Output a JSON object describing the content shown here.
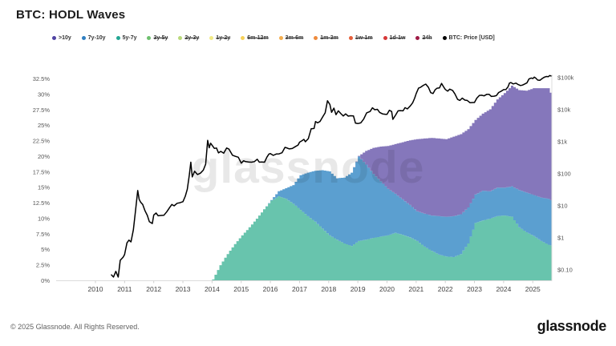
{
  "header": {
    "title": "BTC: HODL Waves"
  },
  "watermark": "glassnode",
  "footer": {
    "copyright": "© 2025 Glassnode. All Rights Reserved.",
    "brand": "glassnode"
  },
  "legend": {
    "items": [
      {
        "label": ">10y",
        "color": "#4f43a3",
        "enabled": true
      },
      {
        "label": "7y-10y",
        "color": "#2f7fc1",
        "enabled": true
      },
      {
        "label": "5y-7y",
        "color": "#23a693",
        "enabled": true
      },
      {
        "label": "3y-5y",
        "color": "#6ec06e",
        "enabled": false
      },
      {
        "label": "2y-3y",
        "color": "#b9d97a",
        "enabled": false
      },
      {
        "label": "1y-2y",
        "color": "#f1ea86",
        "enabled": false
      },
      {
        "label": "6m-12m",
        "color": "#f7d158",
        "enabled": false
      },
      {
        "label": "3m-6m",
        "color": "#f4ae4e",
        "enabled": false
      },
      {
        "label": "1m-3m",
        "color": "#ee8a3c",
        "enabled": false
      },
      {
        "label": "1w-1m",
        "color": "#e55f3a",
        "enabled": false
      },
      {
        "label": "1d-1w",
        "color": "#d63737",
        "enabled": false
      },
      {
        "label": "24h",
        "color": "#9e1a45",
        "enabled": false
      },
      {
        "label": "BTC: Price [USD]",
        "color": "#000000",
        "enabled": true
      }
    ]
  },
  "chart_data": {
    "type": "area",
    "stacked": true,
    "title": "BTC: HODL Waves",
    "x_unit": "year",
    "x_ticks": [
      2010,
      2011,
      2012,
      2013,
      2014,
      2015,
      2016,
      2017,
      2018,
      2019,
      2020,
      2021,
      2022,
      2023,
      2024,
      2025
    ],
    "y_left": {
      "unit": "%",
      "range": [
        0,
        32.5
      ],
      "tick_values": [
        0,
        2.5,
        5,
        7.5,
        10,
        12.5,
        15,
        17.5,
        20,
        22.5,
        25,
        27.5,
        30,
        32.5
      ],
      "tick_labels": [
        "0%",
        "2.5%",
        "5%",
        "7.5%",
        "10%",
        "12.5%",
        "15%",
        "17.5%",
        "20%",
        "22.5%",
        "25%",
        "27.5%",
        "30%",
        "32.5%"
      ]
    },
    "y_right": {
      "scale": "log",
      "unit": "USD",
      "tick_values": [
        0.1,
        1,
        10,
        100,
        1000,
        10000,
        100000
      ],
      "tick_labels": [
        "$0.10",
        "$1",
        "$10",
        "$100",
        "$1k",
        "$10k",
        "$100k"
      ]
    },
    "x": [
      2014.0,
      2014.25,
      2014.5,
      2014.75,
      2015.0,
      2015.25,
      2015.5,
      2015.75,
      2016.0,
      2016.25,
      2016.5,
      2016.75,
      2017.0,
      2017.25,
      2017.5,
      2017.75,
      2018.0,
      2018.25,
      2018.5,
      2018.75,
      2019.0,
      2019.25,
      2019.5,
      2019.75,
      2020.0,
      2020.25,
      2020.5,
      2020.75,
      2021.0,
      2021.25,
      2021.5,
      2021.75,
      2022.0,
      2022.25,
      2022.5,
      2022.75,
      2023.0,
      2023.25,
      2023.5,
      2023.75,
      2024.0,
      2024.25,
      2024.5,
      2024.75,
      2025.0,
      2025.25,
      2025.5,
      2025.65
    ],
    "series": [
      {
        "name": "5y-7y",
        "color": "#68c4ad",
        "values": [
          0.2,
          2.5,
          4.3,
          5.9,
          7.3,
          8.6,
          10.0,
          11.5,
          12.9,
          13.6,
          13.2,
          12.4,
          11.4,
          10.4,
          9.5,
          8.4,
          7.3,
          6.6,
          6.0,
          5.6,
          6.4,
          6.6,
          6.9,
          7.1,
          7.3,
          7.7,
          7.4,
          7.0,
          6.4,
          5.5,
          4.8,
          4.2,
          3.9,
          3.8,
          4.3,
          6.0,
          9.3,
          9.7,
          10.0,
          10.4,
          10.5,
          10.3,
          8.6,
          7.8,
          7.2,
          6.4,
          5.8,
          5.6
        ]
      },
      {
        "name": "7y-10y",
        "color": "#5b9fd0",
        "values": [
          0,
          0,
          0,
          0,
          0,
          0,
          0,
          0,
          0.1,
          0.8,
          1.7,
          3.0,
          5.6,
          7.0,
          8.2,
          9.4,
          10.3,
          9.9,
          10.6,
          11.8,
          13.6,
          12.1,
          10.3,
          8.9,
          7.5,
          6.3,
          5.7,
          5.2,
          4.8,
          5.3,
          5.7,
          6.2,
          6.4,
          6.6,
          6.4,
          5.8,
          4.6,
          4.8,
          4.4,
          4.6,
          4.5,
          4.9,
          6.0,
          6.4,
          6.6,
          7.0,
          7.4,
          7.2
        ]
      },
      {
        "name": ">10y",
        "color": "#8577bb",
        "values": [
          0,
          0,
          0,
          0,
          0,
          0,
          0,
          0,
          0,
          0,
          0,
          0,
          0,
          0,
          0,
          0,
          0,
          0,
          0,
          0,
          0.1,
          2.2,
          4.2,
          5.6,
          6.9,
          8.0,
          9.2,
          10.4,
          11.6,
          12.1,
          12.5,
          12.5,
          12.5,
          12.8,
          12.9,
          12.6,
          12.0,
          12.4,
          13.2,
          14.2,
          15.2,
          16.2,
          16.1,
          16.4,
          17.2,
          17.6,
          17.8,
          16.9
        ]
      }
    ],
    "price": {
      "name": "BTC: Price [USD]",
      "color": "#000000",
      "points": [
        [
          2010.55,
          0.07
        ],
        [
          2010.62,
          0.06
        ],
        [
          2010.7,
          0.09
        ],
        [
          2010.78,
          0.06
        ],
        [
          2010.85,
          0.2
        ],
        [
          2010.95,
          0.25
        ],
        [
          2011.0,
          0.3
        ],
        [
          2011.08,
          0.7
        ],
        [
          2011.15,
          0.85
        ],
        [
          2011.22,
          0.75
        ],
        [
          2011.3,
          1.8
        ],
        [
          2011.38,
          8
        ],
        [
          2011.45,
          30
        ],
        [
          2011.5,
          16
        ],
        [
          2011.55,
          13
        ],
        [
          2011.62,
          11
        ],
        [
          2011.7,
          7
        ],
        [
          2011.78,
          5
        ],
        [
          2011.85,
          3.2
        ],
        [
          2011.95,
          2.8
        ],
        [
          2012.0,
          5.2
        ],
        [
          2012.08,
          6
        ],
        [
          2012.15,
          4.9
        ],
        [
          2012.25,
          5
        ],
        [
          2012.35,
          5.1
        ],
        [
          2012.45,
          6.6
        ],
        [
          2012.55,
          9
        ],
        [
          2012.62,
          11
        ],
        [
          2012.7,
          10
        ],
        [
          2012.8,
          12
        ],
        [
          2012.9,
          12.5
        ],
        [
          2013.0,
          13.5
        ],
        [
          2013.08,
          20
        ],
        [
          2013.15,
          33
        ],
        [
          2013.22,
          90
        ],
        [
          2013.27,
          230
        ],
        [
          2013.32,
          80
        ],
        [
          2013.4,
          120
        ],
        [
          2013.5,
          95
        ],
        [
          2013.6,
          105
        ],
        [
          2013.7,
          130
        ],
        [
          2013.78,
          200
        ],
        [
          2013.85,
          1100
        ],
        [
          2013.9,
          650
        ],
        [
          2013.95,
          900
        ],
        [
          2014.0,
          780
        ],
        [
          2014.08,
          620
        ],
        [
          2014.15,
          640
        ],
        [
          2014.22,
          450
        ],
        [
          2014.3,
          500
        ],
        [
          2014.4,
          440
        ],
        [
          2014.5,
          640
        ],
        [
          2014.58,
          590
        ],
        [
          2014.7,
          380
        ],
        [
          2014.8,
          350
        ],
        [
          2014.9,
          330
        ],
        [
          2015.0,
          215
        ],
        [
          2015.08,
          255
        ],
        [
          2015.15,
          240
        ],
        [
          2015.25,
          235
        ],
        [
          2015.35,
          230
        ],
        [
          2015.45,
          240
        ],
        [
          2015.55,
          285
        ],
        [
          2015.62,
          230
        ],
        [
          2015.7,
          235
        ],
        [
          2015.8,
          230
        ],
        [
          2015.88,
          330
        ],
        [
          2015.95,
          415
        ],
        [
          2016.0,
          430
        ],
        [
          2016.1,
          375
        ],
        [
          2016.2,
          415
        ],
        [
          2016.3,
          420
        ],
        [
          2016.4,
          455
        ],
        [
          2016.5,
          670
        ],
        [
          2016.55,
          650
        ],
        [
          2016.65,
          600
        ],
        [
          2016.75,
          615
        ],
        [
          2016.85,
          700
        ],
        [
          2016.95,
          790
        ],
        [
          2017.0,
          970
        ],
        [
          2017.08,
          1080
        ],
        [
          2017.15,
          1190
        ],
        [
          2017.2,
          1000
        ],
        [
          2017.3,
          1250
        ],
        [
          2017.4,
          2550
        ],
        [
          2017.5,
          2600
        ],
        [
          2017.55,
          4300
        ],
        [
          2017.62,
          3900
        ],
        [
          2017.7,
          4300
        ],
        [
          2017.8,
          6100
        ],
        [
          2017.88,
          8000
        ],
        [
          2017.96,
          19000
        ],
        [
          2018.04,
          14500
        ],
        [
          2018.1,
          8300
        ],
        [
          2018.18,
          11200
        ],
        [
          2018.25,
          7000
        ],
        [
          2018.33,
          9200
        ],
        [
          2018.42,
          7500
        ],
        [
          2018.5,
          6400
        ],
        [
          2018.58,
          7400
        ],
        [
          2018.67,
          6300
        ],
        [
          2018.75,
          6500
        ],
        [
          2018.85,
          6400
        ],
        [
          2018.92,
          3800
        ],
        [
          2019.0,
          3700
        ],
        [
          2019.1,
          3900
        ],
        [
          2019.2,
          5100
        ],
        [
          2019.3,
          8000
        ],
        [
          2019.42,
          8800
        ],
        [
          2019.5,
          11500
        ],
        [
          2019.58,
          10000
        ],
        [
          2019.67,
          10300
        ],
        [
          2019.75,
          8200
        ],
        [
          2019.85,
          7400
        ],
        [
          2019.95,
          7200
        ],
        [
          2020.0,
          7200
        ],
        [
          2020.08,
          9600
        ],
        [
          2020.16,
          8800
        ],
        [
          2020.2,
          5000
        ],
        [
          2020.3,
          6900
        ],
        [
          2020.38,
          9200
        ],
        [
          2020.45,
          9400
        ],
        [
          2020.55,
          9200
        ],
        [
          2020.62,
          11600
        ],
        [
          2020.7,
          10600
        ],
        [
          2020.8,
          13200
        ],
        [
          2020.88,
          16500
        ],
        [
          2020.95,
          23000
        ],
        [
          2021.0,
          32000
        ],
        [
          2021.08,
          47000
        ],
        [
          2021.15,
          50000
        ],
        [
          2021.25,
          58000
        ],
        [
          2021.33,
          63000
        ],
        [
          2021.42,
          50000
        ],
        [
          2021.5,
          34000
        ],
        [
          2021.58,
          32000
        ],
        [
          2021.65,
          42000
        ],
        [
          2021.72,
          47000
        ],
        [
          2021.8,
          48000
        ],
        [
          2021.87,
          66000
        ],
        [
          2021.95,
          50000
        ],
        [
          2022.0,
          43000
        ],
        [
          2022.08,
          38000
        ],
        [
          2022.15,
          44000
        ],
        [
          2022.25,
          40000
        ],
        [
          2022.33,
          31000
        ],
        [
          2022.42,
          21000
        ],
        [
          2022.5,
          19500
        ],
        [
          2022.58,
          23000
        ],
        [
          2022.67,
          20000
        ],
        [
          2022.75,
          19500
        ],
        [
          2022.85,
          16500
        ],
        [
          2022.95,
          16800
        ],
        [
          2023.0,
          16800
        ],
        [
          2023.08,
          23000
        ],
        [
          2023.17,
          28000
        ],
        [
          2023.25,
          28300
        ],
        [
          2023.33,
          27000
        ],
        [
          2023.42,
          30200
        ],
        [
          2023.5,
          30400
        ],
        [
          2023.58,
          26000
        ],
        [
          2023.67,
          26500
        ],
        [
          2023.75,
          27500
        ],
        [
          2023.83,
          34500
        ],
        [
          2023.92,
          38000
        ],
        [
          2024.0,
          42500
        ],
        [
          2024.08,
          43000
        ],
        [
          2024.15,
          52000
        ],
        [
          2024.2,
          68000
        ],
        [
          2024.25,
          70500
        ],
        [
          2024.33,
          64000
        ],
        [
          2024.42,
          67500
        ],
        [
          2024.5,
          61000
        ],
        [
          2024.58,
          57000
        ],
        [
          2024.65,
          59000
        ],
        [
          2024.72,
          63500
        ],
        [
          2024.8,
          69000
        ],
        [
          2024.87,
          91000
        ],
        [
          2024.95,
          98000
        ],
        [
          2025.0,
          94000
        ],
        [
          2025.05,
          104000
        ],
        [
          2025.1,
          97000
        ],
        [
          2025.17,
          84000
        ],
        [
          2025.25,
          83000
        ],
        [
          2025.33,
          95000
        ],
        [
          2025.4,
          104000
        ],
        [
          2025.47,
          109000
        ],
        [
          2025.53,
          107000
        ],
        [
          2025.58,
          117000
        ],
        [
          2025.63,
          113000
        ],
        [
          2025.65,
          114000
        ]
      ]
    }
  }
}
